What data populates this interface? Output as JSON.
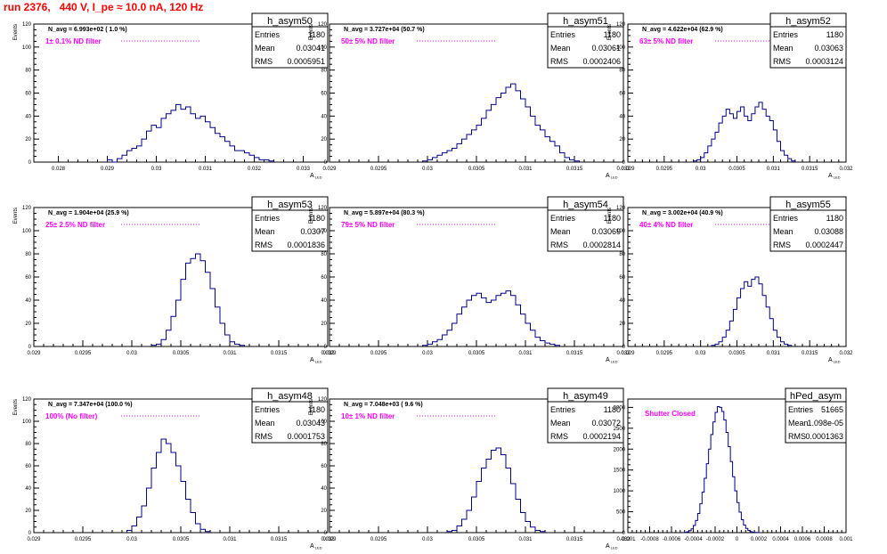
{
  "header": {
    "title": "run 2376,   440 V, I_pe ≈ 10.0 nA, 120 Hz"
  },
  "colors": {
    "histogram": "#00008b",
    "title": "#ff0000",
    "annotation": "#ff00ff",
    "frame": "#000000"
  },
  "chart_data": [
    {
      "type": "histogram",
      "name": "h_asym50",
      "stats": {
        "entries": "1180",
        "mean": "0.03041",
        "rms": "0.0005951"
      },
      "navg": "N_avg = 6.993e+02 ( 1.0 %)",
      "filter": "1± 0.1% ND filter",
      "ylabel": "Events",
      "xlabel": "A",
      "xlim": [
        0.0275,
        0.0335
      ],
      "ylim": [
        0,
        120
      ],
      "xticks": [
        0.028,
        0.029,
        0.03,
        0.031,
        0.032,
        0.033
      ],
      "xtick_labels": [
        "0.028",
        "0.029",
        "0.03",
        "0.031",
        "0.032",
        "0.033"
      ],
      "yticks": [
        0,
        20,
        40,
        60,
        80,
        100,
        120
      ],
      "bins": {
        "start": 0.029,
        "width": 0.0001,
        "counts": [
          2,
          0,
          3,
          6,
          10,
          12,
          14,
          20,
          27,
          32,
          30,
          38,
          42,
          45,
          50,
          46,
          48,
          42,
          38,
          40,
          35,
          30,
          25,
          22,
          18,
          14,
          10,
          10,
          8,
          6,
          4,
          2,
          2,
          1
        ]
      }
    },
    {
      "type": "histogram",
      "name": "h_asym51",
      "stats": {
        "entries": "1180",
        "mean": "0.03061",
        "rms": "0.0002406"
      },
      "navg": "N_avg = 3.727e+04 (50.7 %)",
      "filter": "50± 5% ND filter",
      "ylabel": "Events",
      "xlabel": "A",
      "xlim": [
        0.029,
        0.032
      ],
      "ylim": [
        0,
        120
      ],
      "xticks": [
        0.029,
        0.0295,
        0.03,
        0.0305,
        0.031,
        0.0315,
        0.032
      ],
      "xtick_labels": [
        "0.029",
        "0.0295",
        "0.03",
        "0.0305",
        "0.031",
        "0.0315",
        "0.032"
      ],
      "yticks": [
        0,
        20,
        40,
        60,
        80,
        100,
        120
      ],
      "bins": {
        "start": 0.02995,
        "width": 5e-05,
        "counts": [
          1,
          2,
          4,
          6,
          8,
          10,
          12,
          16,
          20,
          24,
          28,
          32,
          38,
          45,
          50,
          56,
          60,
          65,
          68,
          62,
          55,
          48,
          40,
          32,
          28,
          22,
          18,
          14,
          8,
          4,
          2,
          1
        ]
      }
    },
    {
      "type": "histogram",
      "name": "h_asym52",
      "stats": {
        "entries": "1180",
        "mean": "0.03063",
        "rms": "0.0003124"
      },
      "navg": "N_avg = 4.622e+04 (62.9 %)",
      "filter": "63± 5% ND filter",
      "ylabel": "Events",
      "xlabel": "A",
      "xlim": [
        0.029,
        0.032
      ],
      "ylim": [
        0,
        120
      ],
      "xticks": [
        0.029,
        0.0295,
        0.03,
        0.0305,
        0.031,
        0.0315,
        0.032
      ],
      "xtick_labels": [
        "0.029",
        "0.0295",
        "0.03",
        "0.0305",
        "0.031",
        "0.0315",
        "0.032"
      ],
      "yticks": [
        0,
        20,
        40,
        60,
        80,
        100,
        120
      ],
      "bins": {
        "start": 0.0299,
        "width": 5e-05,
        "counts": [
          1,
          2,
          4,
          8,
          14,
          20,
          26,
          34,
          40,
          46,
          42,
          38,
          44,
          48,
          40,
          36,
          42,
          48,
          52,
          46,
          40,
          36,
          28,
          18,
          10,
          6,
          3,
          1
        ]
      }
    },
    {
      "type": "histogram",
      "name": "h_asym53",
      "stats": {
        "entries": "1180",
        "mean": "0.0307",
        "rms": "0.0001836"
      },
      "navg": "N_avg = 1.904e+04 (25.9 %)",
      "filter": "25± 2.5% ND filter",
      "ylabel": "Events",
      "xlabel": "A",
      "xlim": [
        0.029,
        0.032
      ],
      "ylim": [
        0,
        120
      ],
      "xticks": [
        0.029,
        0.0295,
        0.03,
        0.0305,
        0.031,
        0.0315,
        0.032
      ],
      "xtick_labels": [
        "0.029",
        "0.0295",
        "0.03",
        "0.0305",
        "0.031",
        "0.0315",
        "0.032"
      ],
      "yticks": [
        0,
        20,
        40,
        60,
        80,
        100,
        120
      ],
      "bins": {
        "start": 0.0302,
        "width": 5e-05,
        "counts": [
          1,
          2,
          6,
          14,
          26,
          40,
          58,
          72,
          76,
          80,
          74,
          64,
          50,
          34,
          20,
          10,
          4,
          2,
          1
        ]
      }
    },
    {
      "type": "histogram",
      "name": "h_asym54",
      "stats": {
        "entries": "1180",
        "mean": "0.03069",
        "rms": "0.0002814"
      },
      "navg": "N_avg = 5.897e+04 (80.3 %)",
      "filter": "79± 5% ND filter",
      "ylabel": "Events",
      "xlabel": "A",
      "xlim": [
        0.029,
        0.032
      ],
      "ylim": [
        0,
        120
      ],
      "xticks": [
        0.029,
        0.0295,
        0.03,
        0.0305,
        0.031,
        0.0315,
        0.032
      ],
      "xtick_labels": [
        "0.029",
        "0.0295",
        "0.03",
        "0.0305",
        "0.031",
        "0.0315",
        "0.032"
      ],
      "yticks": [
        0,
        20,
        40,
        60,
        80,
        100,
        120
      ],
      "bins": {
        "start": 0.02995,
        "width": 5e-05,
        "counts": [
          1,
          2,
          4,
          6,
          10,
          14,
          20,
          28,
          34,
          40,
          44,
          46,
          42,
          38,
          40,
          44,
          46,
          48,
          44,
          36,
          28,
          20,
          14,
          8,
          5,
          3,
          2,
          1
        ]
      }
    },
    {
      "type": "histogram",
      "name": "h_asym55",
      "stats": {
        "entries": "1180",
        "mean": "0.03088",
        "rms": "0.0002447"
      },
      "navg": "N_avg = 3.002e+04 (40.9 %)",
      "filter": "40± 4% ND filter",
      "ylabel": "Events",
      "xlabel": "A",
      "xlim": [
        0.029,
        0.032
      ],
      "ylim": [
        0,
        120
      ],
      "xticks": [
        0.029,
        0.0295,
        0.03,
        0.0305,
        0.031,
        0.0315,
        0.032
      ],
      "xtick_labels": [
        "0.029",
        "0.0295",
        "0.03",
        "0.0305",
        "0.031",
        "0.0315",
        "0.032"
      ],
      "yticks": [
        0,
        20,
        40,
        60,
        80,
        100,
        120
      ],
      "bins": {
        "start": 0.03015,
        "width": 5e-05,
        "counts": [
          1,
          2,
          4,
          8,
          14,
          22,
          32,
          42,
          50,
          56,
          52,
          58,
          60,
          54,
          44,
          34,
          24,
          14,
          8,
          4,
          2,
          1
        ]
      }
    },
    {
      "type": "histogram",
      "name": "h_asym48",
      "stats": {
        "entries": "1180",
        "mean": "0.03043",
        "rms": "0.0001753"
      },
      "navg": "N_avg = 7.347e+04 (100.0 %)",
      "filter": "100% (No filter)",
      "ylabel": "Events",
      "xlabel": "A",
      "xlim": [
        0.029,
        0.032
      ],
      "ylim": [
        0,
        120
      ],
      "xticks": [
        0.029,
        0.0295,
        0.03,
        0.0305,
        0.031,
        0.0315,
        0.032
      ],
      "xtick_labels": [
        "0.029",
        "0.0295",
        "0.03",
        "0.0305",
        "0.031",
        "0.0315",
        "0.032"
      ],
      "yticks": [
        0,
        20,
        40,
        60,
        80,
        100,
        120
      ],
      "bins": {
        "start": 0.02995,
        "width": 5e-05,
        "counts": [
          2,
          6,
          14,
          24,
          40,
          58,
          72,
          84,
          80,
          72,
          60,
          46,
          30,
          18,
          8,
          3,
          1
        ]
      }
    },
    {
      "type": "histogram",
      "name": "h_asym49",
      "stats": {
        "entries": "1180",
        "mean": "0.03072",
        "rms": "0.0002194"
      },
      "navg": "N_avg = 7.048e+03 ( 9.6 %)",
      "filter": "10± 1% ND filter",
      "ylabel": "Events",
      "xlabel": "A",
      "xlim": [
        0.029,
        0.032
      ],
      "ylim": [
        0,
        120
      ],
      "xticks": [
        0.029,
        0.0295,
        0.03,
        0.0305,
        0.031,
        0.0315,
        0.032
      ],
      "xtick_labels": [
        "0.029",
        "0.0295",
        "0.03",
        "0.0305",
        "0.031",
        "0.0315",
        "0.032"
      ],
      "yticks": [
        0,
        20,
        40,
        60,
        80,
        100,
        120
      ],
      "bins": {
        "start": 0.0302,
        "width": 5e-05,
        "counts": [
          1,
          2,
          6,
          12,
          20,
          32,
          46,
          58,
          66,
          74,
          76,
          70,
          58,
          44,
          30,
          18,
          10,
          5,
          2,
          1
        ]
      }
    },
    {
      "type": "histogram",
      "name": "hPed_asym",
      "stats": {
        "entries": "51665",
        "mean": "1.098e-05",
        "rms": "0.0001363"
      },
      "navg": "",
      "filter": "Shutter Closed",
      "ylabel": "",
      "xlabel": "",
      "xlim": [
        -0.001,
        0.001
      ],
      "ylim": [
        0,
        3200
      ],
      "xticks": [
        -0.001,
        -0.0008,
        -0.0006,
        -0.0004,
        -0.0002,
        0,
        0.0002,
        0.0004,
        0.0006,
        0.0008,
        0.001
      ],
      "xtick_labels": [
        "-0.001",
        "-0.0008",
        "-0.0006",
        "-0.0004",
        "-0.0002",
        "0",
        "0.0002",
        "0.0004",
        "0.0006",
        "0.0008",
        "0.001"
      ],
      "yticks": [
        0,
        500,
        1000,
        1500,
        2000,
        2500,
        3000
      ],
      "bins": {
        "start": -0.0005,
        "width": 2e-05,
        "counts": [
          3,
          8,
          20,
          45,
          90,
          170,
          290,
          460,
          690,
          970,
          1300,
          1650,
          2000,
          2350,
          2650,
          2880,
          3020,
          3000,
          2900,
          2700,
          2400,
          2060,
          1700,
          1340,
          1000,
          720,
          490,
          310,
          180,
          100,
          52,
          25,
          11,
          5,
          2
        ]
      }
    }
  ]
}
